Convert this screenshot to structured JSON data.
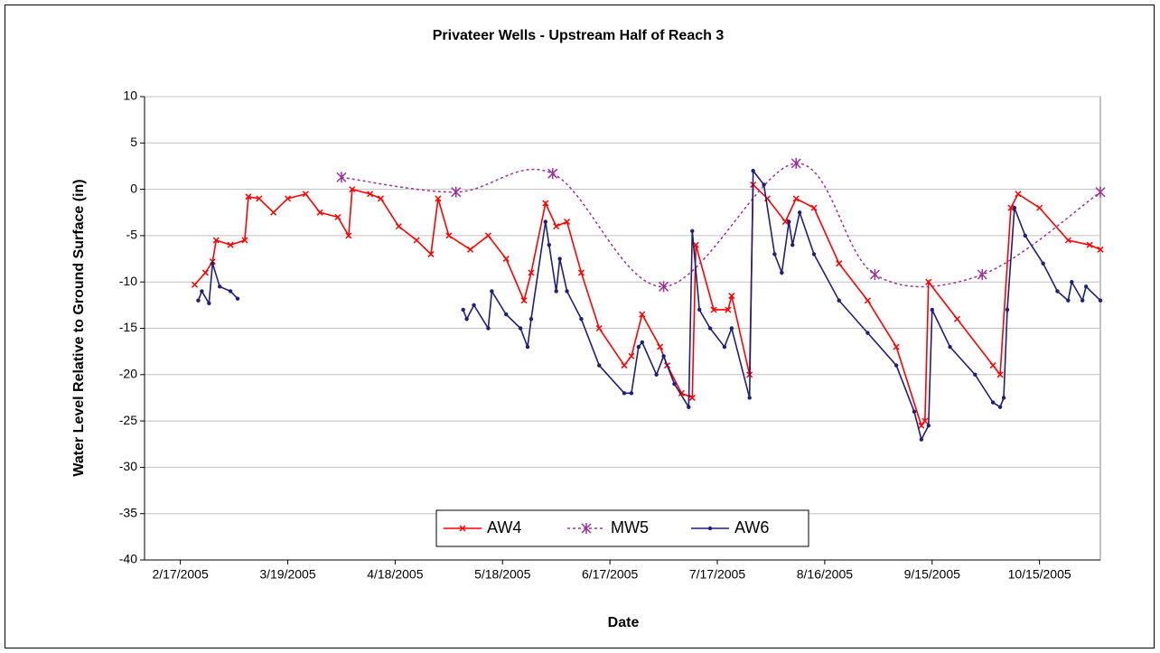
{
  "chart_data": {
    "type": "line",
    "title": "Privateer Wells - Upstream Half of Reach 3",
    "x_label": "Date",
    "y_label": "Water Level Relative to Ground Surface (in)",
    "xlim": [
      "2005-02-07",
      "2005-11-01"
    ],
    "xticks": [
      {
        "value": "2005-02-17",
        "label": "2/17/2005"
      },
      {
        "value": "2005-03-19",
        "label": "3/19/2005"
      },
      {
        "value": "2005-04-18",
        "label": "4/18/2005"
      },
      {
        "value": "2005-05-18",
        "label": "5/18/2005"
      },
      {
        "value": "2005-06-17",
        "label": "6/17/2005"
      },
      {
        "value": "2005-07-17",
        "label": "7/17/2005"
      },
      {
        "value": "2005-08-16",
        "label": "8/16/2005"
      },
      {
        "value": "2005-09-15",
        "label": "9/15/2005"
      },
      {
        "value": "2005-10-15",
        "label": "10/15/2005"
      }
    ],
    "ylim": [
      -40,
      10
    ],
    "yticks": [
      -40,
      -35,
      -30,
      -25,
      -20,
      -15,
      -10,
      -5,
      0,
      5,
      10
    ],
    "grid": true,
    "legend": "bottom",
    "series": [
      {
        "name": "AW4",
        "color": "#ff0000",
        "marker": "x",
        "dash": false,
        "smooth": false,
        "x": [
          "2005-02-21",
          "2005-02-24",
          "2005-02-26",
          "2005-02-27",
          "2005-03-03",
          "2005-03-07",
          "2005-03-08",
          "2005-03-11",
          "2005-03-15",
          "2005-03-19",
          "2005-03-24",
          "2005-03-28",
          "2005-04-02",
          "2005-04-05",
          "2005-04-06",
          "2005-04-11",
          "2005-04-14",
          "2005-04-19",
          "2005-04-24",
          "2005-04-28",
          "2005-04-30",
          "2005-05-03",
          "2005-05-09",
          "2005-05-14",
          "2005-05-19",
          "2005-05-24",
          "2005-05-26",
          "2005-05-30",
          "2005-06-02",
          "2005-06-05",
          "2005-06-09",
          "2005-06-14",
          "2005-06-21",
          "2005-06-23",
          "2005-06-26",
          "2005-07-01",
          "2005-07-03",
          "2005-07-07",
          "2005-07-10",
          "2005-07-11",
          "2005-07-16",
          "2005-07-20",
          "2005-07-21",
          "2005-07-26",
          "2005-07-27",
          "2005-07-31",
          "2005-08-05",
          "2005-08-08",
          "2005-08-13",
          "2005-08-20",
          "2005-08-28",
          "2005-09-05",
          "2005-09-12",
          "2005-09-13",
          "2005-09-14",
          "2005-09-22",
          "2005-10-02",
          "2005-10-04",
          "2005-10-07",
          "2005-10-09",
          "2005-10-15",
          "2005-10-23",
          "2005-10-29",
          "2005-11-01"
        ],
        "values": [
          -10.3,
          -9,
          -7.8,
          -5.5,
          -6,
          -5.5,
          -0.8,
          -1,
          -2.5,
          -1,
          -0.5,
          -2.5,
          -3,
          -5,
          0,
          -0.5,
          -1,
          -4,
          -5.5,
          -7,
          -1,
          -5,
          -6.5,
          -5,
          -7.5,
          -12,
          -9,
          -1.5,
          -4,
          -3.5,
          -9,
          -15,
          -19,
          -18,
          -13.5,
          -17,
          -19,
          -22,
          -22.5,
          -6,
          -13,
          -13,
          -11.5,
          -20,
          0.5,
          -1,
          -3.5,
          -1,
          -2,
          -8,
          -12,
          -17,
          -25.5,
          -25,
          -10,
          -14,
          -19,
          -20,
          -2,
          -0.5,
          -2,
          -5.5,
          -6,
          -6.5
        ]
      },
      {
        "name": "MW5",
        "color": "#993399",
        "marker": "star",
        "dash": true,
        "smooth": true,
        "x": [
          "2005-04-03",
          "2005-05-05",
          "2005-06-01",
          "2005-07-02",
          "2005-08-08",
          "2005-08-30",
          "2005-09-29",
          "2005-11-01"
        ],
        "values": [
          1.3,
          -0.3,
          1.7,
          -10.5,
          2.8,
          -9.2,
          -9.2,
          -0.3
        ]
      },
      {
        "name": "AW6",
        "color": "#1f1f7a",
        "marker": "dot",
        "dash": false,
        "smooth": false,
        "x": [
          "2005-02-22",
          "2005-02-23",
          "2005-02-25",
          "2005-02-26",
          "2005-02-28",
          "2005-03-03",
          "2005-03-05",
          null,
          "2005-05-07",
          "2005-05-08",
          "2005-05-10",
          "2005-05-14",
          "2005-05-15",
          "2005-05-19",
          "2005-05-23",
          "2005-05-25",
          "2005-05-26",
          "2005-05-30",
          "2005-05-31",
          "2005-06-02",
          "2005-06-03",
          "2005-06-05",
          "2005-06-09",
          "2005-06-14",
          "2005-06-21",
          "2005-06-23",
          "2005-06-25",
          "2005-06-26",
          "2005-06-30",
          "2005-07-02",
          "2005-07-05",
          "2005-07-09",
          "2005-07-10",
          "2005-07-12",
          "2005-07-15",
          "2005-07-19",
          "2005-07-21",
          "2005-07-26",
          "2005-07-27",
          "2005-07-30",
          "2005-08-02",
          "2005-08-04",
          "2005-08-06",
          "2005-08-07",
          "2005-08-09",
          "2005-08-13",
          "2005-08-20",
          "2005-08-28",
          "2005-09-05",
          "2005-09-10",
          "2005-09-12",
          "2005-09-14",
          "2005-09-15",
          "2005-09-20",
          "2005-09-27",
          "2005-10-02",
          "2005-10-04",
          "2005-10-05",
          "2005-10-06",
          "2005-10-08",
          "2005-10-11",
          "2005-10-16",
          "2005-10-20",
          "2005-10-23",
          "2005-10-24",
          "2005-10-27",
          "2005-10-28",
          "2005-11-01"
        ],
        "values": [
          -12,
          -11,
          -12.3,
          -8,
          -10.5,
          -11,
          -11.8,
          null,
          -13,
          -14,
          -12.5,
          -15,
          -11,
          -13.5,
          -15,
          -17,
          -14,
          -3.5,
          -6,
          -11,
          -7.5,
          -11,
          -14,
          -19,
          -22,
          -22,
          -17,
          -16.5,
          -20,
          -18,
          -21,
          -23.5,
          -4.5,
          -13,
          -15,
          -17,
          -15,
          -22.5,
          2,
          0.5,
          -7,
          -9,
          -3.5,
          -6,
          -2.5,
          -7,
          -12,
          -15.5,
          -19,
          -24,
          -27,
          -25.5,
          -13,
          -17,
          -20,
          -23,
          -23.5,
          -22.5,
          -13,
          -2,
          -5,
          -8,
          -11,
          -12,
          -10,
          -12,
          -10.5,
          -12
        ]
      }
    ]
  }
}
